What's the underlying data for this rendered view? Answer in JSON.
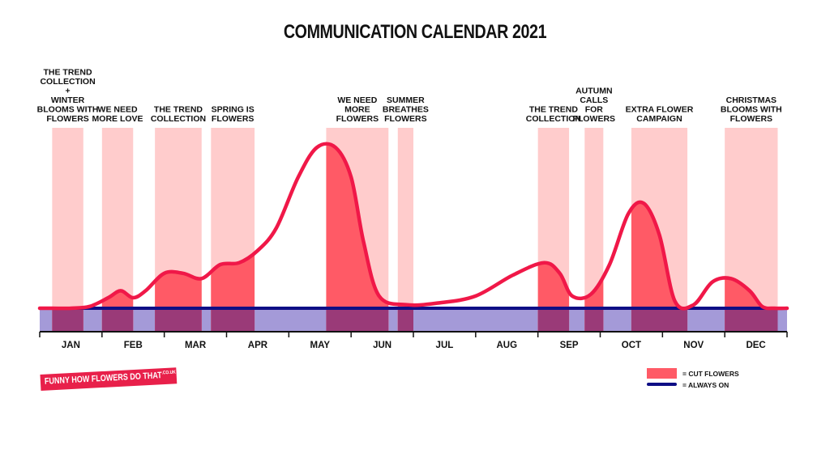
{
  "title": "COMMUNICATION CALENDAR 2021",
  "colors": {
    "cut_flowers_fill": "#ff5a66",
    "campaign_band": "#ffcccc",
    "always_on_band": "#a49ad8",
    "always_on_line": "#0e0e85",
    "curve": "#f01848",
    "axis": "#111111"
  },
  "logo": {
    "part1": "FUNNY HOW ",
    "part2": "FLOWERS",
    "part3": " DO THAT",
    "domain": ".CO.UK"
  },
  "legend": [
    {
      "swatch": "cut-flowers",
      "label": "= CUT FLOWERS"
    },
    {
      "swatch": "always-on",
      "label": "= ALWAYS ON"
    }
  ],
  "chart_data": {
    "type": "area",
    "months": [
      "JAN",
      "FEB",
      "MAR",
      "APR",
      "MAY",
      "JUN",
      "JUL",
      "AUG",
      "SEP",
      "OCT",
      "NOV",
      "DEC"
    ],
    "always_on_level": 0,
    "intensity_curve": [
      {
        "m": 0.0,
        "v": 0
      },
      {
        "m": 0.2,
        "v": 0
      },
      {
        "m": 0.5,
        "v": 0
      },
      {
        "m": 0.8,
        "v": 0.01
      },
      {
        "m": 1.1,
        "v": 0.06
      },
      {
        "m": 1.3,
        "v": 0.1
      },
      {
        "m": 1.5,
        "v": 0.06
      },
      {
        "m": 1.7,
        "v": 0.1
      },
      {
        "m": 2.0,
        "v": 0.2
      },
      {
        "m": 2.3,
        "v": 0.2
      },
      {
        "m": 2.6,
        "v": 0.17
      },
      {
        "m": 2.9,
        "v": 0.25
      },
      {
        "m": 3.2,
        "v": 0.26
      },
      {
        "m": 3.5,
        "v": 0.33
      },
      {
        "m": 3.8,
        "v": 0.46
      },
      {
        "m": 4.15,
        "v": 0.75
      },
      {
        "m": 4.45,
        "v": 0.92
      },
      {
        "m": 4.75,
        "v": 0.92
      },
      {
        "m": 5.0,
        "v": 0.75
      },
      {
        "m": 5.2,
        "v": 0.38
      },
      {
        "m": 5.45,
        "v": 0.07
      },
      {
        "m": 5.9,
        "v": 0.02
      },
      {
        "m": 6.4,
        "v": 0.03
      },
      {
        "m": 7.0,
        "v": 0.07
      },
      {
        "m": 7.6,
        "v": 0.19
      },
      {
        "m": 8.1,
        "v": 0.26
      },
      {
        "m": 8.35,
        "v": 0.2
      },
      {
        "m": 8.55,
        "v": 0.07
      },
      {
        "m": 8.85,
        "v": 0.08
      },
      {
        "m": 9.15,
        "v": 0.25
      },
      {
        "m": 9.45,
        "v": 0.54
      },
      {
        "m": 9.7,
        "v": 0.6
      },
      {
        "m": 9.95,
        "v": 0.42
      },
      {
        "m": 10.2,
        "v": 0.04
      },
      {
        "m": 10.5,
        "v": 0.02
      },
      {
        "m": 10.8,
        "v": 0.15
      },
      {
        "m": 11.1,
        "v": 0.17
      },
      {
        "m": 11.4,
        "v": 0.1
      },
      {
        "m": 11.6,
        "v": 0.01
      },
      {
        "m": 11.8,
        "v": 0.0
      },
      {
        "m": 12.0,
        "v": 0.0
      }
    ],
    "campaigns": [
      {
        "lines": [
          "THE TREND",
          "COLLECTION",
          "+",
          "WINTER",
          "BLOOMS WITH",
          "FLOWERS"
        ],
        "start": 0.2,
        "end": 0.7
      },
      {
        "lines": [
          "WE NEED",
          "MORE LOVE"
        ],
        "start": 1.0,
        "end": 1.5
      },
      {
        "lines": [
          "THE TREND",
          "COLLECTION"
        ],
        "start": 1.85,
        "end": 2.6
      },
      {
        "lines": [
          "SPRING IS",
          "FLOWERS"
        ],
        "start": 2.75,
        "end": 3.45
      },
      {
        "lines": [
          "WE NEED",
          "MORE",
          "FLOWERS"
        ],
        "start": 4.6,
        "end": 5.6
      },
      {
        "lines": [
          "SUMMER",
          "BREATHES",
          "FLOWERS"
        ],
        "start": 5.75,
        "end": 6.0
      },
      {
        "lines": [
          "THE TREND",
          "COLLECTION"
        ],
        "start": 8.0,
        "end": 8.5
      },
      {
        "lines": [
          "AUTUMN",
          "CALLS",
          "FOR",
          "FLOWERS"
        ],
        "start": 8.75,
        "end": 9.05
      },
      {
        "lines": [
          "EXTRA FLOWER",
          "CAMPAIGN"
        ],
        "start": 9.5,
        "end": 10.4
      },
      {
        "lines": [
          "CHRISTMAS",
          "BLOOMS WITH",
          "FLOWERS"
        ],
        "start": 11.0,
        "end": 11.85
      }
    ]
  }
}
